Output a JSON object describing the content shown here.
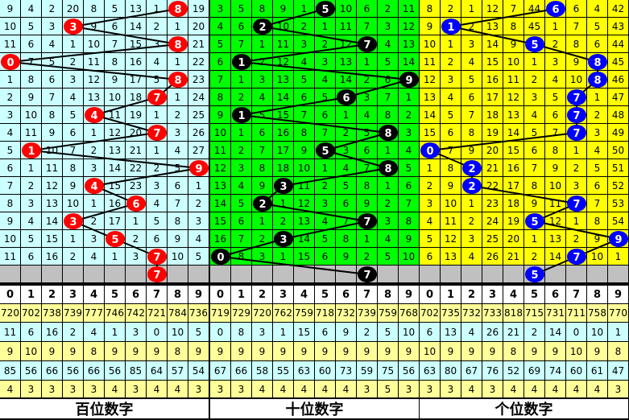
{
  "chart_data": {
    "type": "table",
    "colors": {
      "hundreds_bg": "#ccffff",
      "tens_bg": "#00ff00",
      "units_bg": "#ffff00",
      "pending_row": "#c0c0c0",
      "stat_yellow": "#ffff99",
      "stat_cyan": "#ccffff",
      "hundreds_ball": "#ff0000",
      "tens_ball": "#000000",
      "units_ball": "#0000ff"
    },
    "panels": [
      {
        "label": "百位数字",
        "draws": [
          8,
          3,
          8,
          0,
          8,
          7,
          4,
          7,
          1,
          9,
          4,
          6,
          3,
          5,
          7
        ],
        "next": 7,
        "rows": [
          [
            9,
            4,
            2,
            20,
            8,
            5,
            13,
            1,
            8,
            19
          ],
          [
            10,
            5,
            3,
            3,
            9,
            6,
            14,
            2,
            1,
            20
          ],
          [
            11,
            6,
            4,
            1,
            10,
            7,
            15,
            3,
            8,
            21
          ],
          [
            0,
            7,
            5,
            2,
            11,
            8,
            16,
            4,
            1,
            22
          ],
          [
            1,
            8,
            6,
            3,
            12,
            9,
            17,
            5,
            8,
            23
          ],
          [
            2,
            9,
            7,
            4,
            13,
            10,
            18,
            7,
            1,
            24
          ],
          [
            3,
            10,
            8,
            5,
            4,
            11,
            19,
            1,
            2,
            25
          ],
          [
            4,
            11,
            9,
            6,
            1,
            12,
            20,
            7,
            3,
            26
          ],
          [
            5,
            1,
            10,
            7,
            2,
            13,
            21,
            1,
            4,
            27
          ],
          [
            6,
            1,
            11,
            8,
            3,
            14,
            22,
            2,
            5,
            9
          ],
          [
            7,
            2,
            12,
            9,
            4,
            15,
            23,
            3,
            6,
            1
          ],
          [
            8,
            3,
            13,
            10,
            1,
            16,
            6,
            4,
            7,
            2
          ],
          [
            9,
            4,
            14,
            3,
            2,
            17,
            1,
            5,
            8,
            3
          ],
          [
            10,
            5,
            15,
            1,
            3,
            5,
            2,
            6,
            9,
            4
          ],
          [
            11,
            6,
            16,
            2,
            4,
            1,
            3,
            7,
            10,
            5
          ]
        ],
        "header": [
          "0",
          "1",
          "2",
          "3",
          "4",
          "5",
          "6",
          "7",
          "8",
          "9"
        ],
        "stats": [
          [
            720,
            702,
            738,
            739,
            777,
            746,
            742,
            721,
            784,
            736
          ],
          [
            11,
            6,
            16,
            2,
            4,
            1,
            3,
            0,
            10,
            5
          ],
          [
            9,
            10,
            9,
            9,
            8,
            9,
            9,
            9,
            8,
            9
          ],
          [
            85,
            56,
            66,
            56,
            66,
            56,
            85,
            64,
            57,
            54
          ],
          [
            4,
            3,
            3,
            3,
            3,
            4,
            3,
            4,
            4,
            3
          ]
        ]
      },
      {
        "label": "十位数字",
        "draws": [
          5,
          2,
          7,
          1,
          9,
          6,
          1,
          8,
          5,
          8,
          3,
          2,
          7,
          3,
          0
        ],
        "next": 7,
        "rows": [
          [
            3,
            5,
            8,
            9,
            1,
            5,
            10,
            6,
            2,
            11
          ],
          [
            4,
            6,
            2,
            10,
            2,
            1,
            11,
            7,
            3,
            12
          ],
          [
            5,
            7,
            1,
            11,
            3,
            2,
            12,
            7,
            4,
            13
          ],
          [
            6,
            1,
            2,
            12,
            4,
            3,
            13,
            1,
            5,
            14
          ],
          [
            7,
            1,
            3,
            13,
            5,
            4,
            14,
            2,
            6,
            9
          ],
          [
            8,
            2,
            4,
            14,
            6,
            5,
            6,
            3,
            7,
            1
          ],
          [
            9,
            1,
            5,
            15,
            7,
            6,
            1,
            4,
            8,
            2
          ],
          [
            10,
            1,
            6,
            16,
            8,
            7,
            2,
            5,
            8,
            3
          ],
          [
            11,
            2,
            7,
            17,
            9,
            5,
            3,
            6,
            1,
            4
          ],
          [
            12,
            3,
            8,
            18,
            10,
            1,
            4,
            7,
            8,
            5
          ],
          [
            13,
            4,
            9,
            3,
            11,
            2,
            5,
            8,
            1,
            6
          ],
          [
            14,
            5,
            2,
            1,
            12,
            3,
            6,
            9,
            2,
            7
          ],
          [
            15,
            6,
            1,
            2,
            13,
            4,
            7,
            7,
            3,
            8
          ],
          [
            16,
            7,
            2,
            3,
            14,
            5,
            8,
            1,
            4,
            9
          ],
          [
            0,
            8,
            3,
            1,
            15,
            6,
            9,
            2,
            5,
            10
          ]
        ],
        "header": [
          "0",
          "1",
          "2",
          "3",
          "4",
          "5",
          "6",
          "7",
          "8",
          "9"
        ],
        "stats": [
          [
            719,
            729,
            720,
            762,
            759,
            718,
            732,
            739,
            759,
            768
          ],
          [
            0,
            8,
            3,
            1,
            15,
            6,
            9,
            2,
            5,
            10
          ],
          [
            9,
            9,
            9,
            9,
            9,
            9,
            9,
            9,
            9,
            9
          ],
          [
            67,
            66,
            58,
            55,
            63,
            60,
            73,
            59,
            75,
            56
          ],
          [
            3,
            3,
            4,
            4,
            4,
            4,
            4,
            3,
            5,
            3
          ]
        ]
      },
      {
        "label": "个位数字",
        "draws": [
          6,
          1,
          5,
          8,
          8,
          7,
          7,
          7,
          0,
          2,
          2,
          7,
          5,
          9,
          7
        ],
        "next": 5,
        "rows": [
          [
            8,
            2,
            1,
            12,
            7,
            44,
            6,
            6,
            4,
            42
          ],
          [
            9,
            1,
            2,
            13,
            8,
            45,
            1,
            7,
            5,
            43
          ],
          [
            10,
            1,
            3,
            14,
            9,
            5,
            2,
            8,
            6,
            44
          ],
          [
            11,
            2,
            4,
            15,
            10,
            1,
            3,
            9,
            8,
            45
          ],
          [
            12,
            3,
            5,
            16,
            11,
            2,
            4,
            10,
            8,
            46
          ],
          [
            13,
            4,
            6,
            17,
            12,
            3,
            5,
            7,
            1,
            47
          ],
          [
            14,
            5,
            7,
            18,
            13,
            4,
            6,
            7,
            2,
            48
          ],
          [
            15,
            6,
            8,
            19,
            14,
            5,
            7,
            7,
            3,
            49
          ],
          [
            0,
            7,
            9,
            20,
            15,
            6,
            8,
            1,
            4,
            50
          ],
          [
            1,
            8,
            2,
            21,
            16,
            7,
            9,
            2,
            5,
            51
          ],
          [
            2,
            9,
            2,
            22,
            17,
            8,
            10,
            3,
            6,
            52
          ],
          [
            3,
            10,
            1,
            23,
            18,
            9,
            11,
            7,
            7,
            53
          ],
          [
            4,
            11,
            2,
            24,
            19,
            5,
            12,
            1,
            8,
            54
          ],
          [
            5,
            12,
            3,
            25,
            20,
            1,
            13,
            2,
            9,
            9
          ],
          [
            6,
            13,
            4,
            26,
            21,
            2,
            14,
            7,
            10,
            1
          ]
        ],
        "header": [
          "0",
          "1",
          "2",
          "3",
          "4",
          "5",
          "6",
          "7",
          "8",
          "9"
        ],
        "stats": [
          [
            702,
            735,
            732,
            733,
            818,
            715,
            731,
            711,
            758,
            770
          ],
          [
            6,
            13,
            4,
            26,
            21,
            2,
            14,
            0,
            10,
            1
          ],
          [
            10,
            9,
            9,
            9,
            8,
            9,
            9,
            10,
            9,
            8
          ],
          [
            63,
            80,
            67,
            76,
            52,
            69,
            74,
            60,
            61,
            47
          ],
          [
            3,
            3,
            4,
            3,
            4,
            4,
            4,
            4,
            4,
            3
          ]
        ]
      }
    ]
  }
}
